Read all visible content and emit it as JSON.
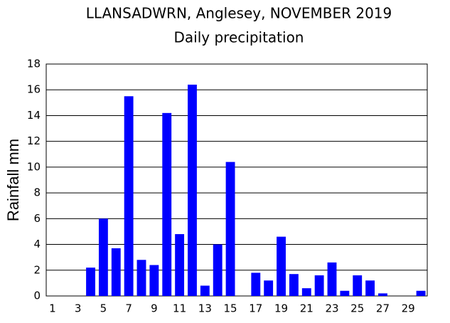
{
  "chart_data": {
    "type": "bar",
    "title": "LLANSADWRN, Anglesey, NOVEMBER 2019",
    "subtitle": "Daily precipitation",
    "y_label": "Rainfall mm",
    "categories": [
      "1",
      null,
      "3",
      null,
      "5",
      null,
      "7",
      null,
      "9",
      null,
      "11",
      null,
      "13",
      null,
      "15",
      null,
      "17",
      null,
      "19",
      null,
      "21",
      null,
      "23",
      null,
      "25",
      null,
      "27",
      null,
      "29",
      null
    ],
    "values": [
      0,
      0,
      0,
      2.2,
      6.0,
      3.7,
      15.5,
      2.8,
      2.4,
      14.2,
      4.8,
      16.4,
      0.8,
      4.0,
      10.4,
      0,
      1.8,
      1.2,
      4.6,
      1.7,
      0.6,
      1.6,
      2.6,
      0.4,
      1.6,
      1.2,
      0.2,
      0,
      0,
      0.4
    ],
    "color": "#0000ff",
    "ylim": [
      0,
      18
    ],
    "yticks": [
      0,
      2,
      4,
      6,
      8,
      10,
      12,
      14,
      16,
      18
    ],
    "grid": true
  }
}
